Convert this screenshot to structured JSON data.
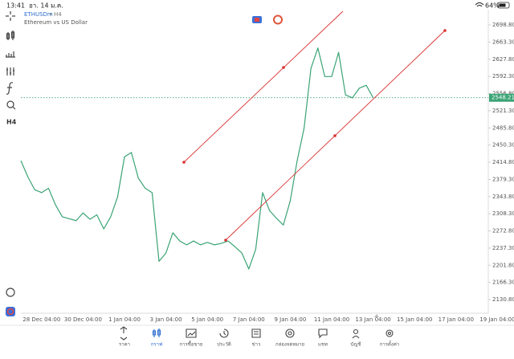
{
  "status_bar": {
    "time": "13:41",
    "date": "อา. 14 ม.ค.",
    "battery": "64%"
  },
  "header": {
    "symbol": "ETHUSDm",
    "timeframe": "H4",
    "description": "Ethereum vs US Dollar"
  },
  "toolbar": {
    "timeframe_button": "H4"
  },
  "chart_data": {
    "type": "line",
    "categories": [
      null,
      null,
      null,
      "28 Dec 04:00",
      null,
      null,
      null,
      null,
      null,
      "30 Dec 04:00",
      null,
      null,
      null,
      null,
      null,
      "1 Jan 04:00",
      null,
      null,
      null,
      null,
      null,
      "3 Jan 04:00",
      null,
      null,
      null,
      null,
      null,
      "5 Jan 04:00",
      null,
      null,
      null,
      null,
      null,
      "7 Jan 04:00",
      null,
      null,
      null,
      null,
      null,
      "9 Jan 04:00",
      null,
      null,
      null,
      null,
      null,
      "11 Jan 04:00",
      null,
      null,
      null,
      null,
      null,
      "13 Jan 04:00",
      null,
      null,
      null,
      null,
      null,
      "15 Jan 04:00",
      null,
      null,
      null,
      null,
      null,
      "17 Jan 04:00",
      null,
      null,
      null,
      null,
      null,
      "19 Jan 04:00",
      null,
      null
    ],
    "series": [
      {
        "name": "ETHUSDm",
        "color": "#3aa374",
        "values": [
          2418,
          2385,
          2358,
          2352,
          2361,
          2327,
          2302,
          2298,
          2294,
          2310,
          2297,
          2306,
          2277,
          2302,
          2343,
          2426,
          2435,
          2382,
          2361,
          2352,
          2210,
          2227,
          2269,
          2252,
          2244,
          2252,
          2244,
          2249,
          2244,
          2247,
          2252,
          2240,
          2227,
          2194,
          2235,
          2352,
          2315,
          2299,
          2285,
          2335,
          2418,
          2485,
          2609,
          2651,
          2592,
          2592,
          2642,
          2554,
          2548,
          2568,
          2574,
          2548.21,
          null,
          null,
          null,
          null,
          null,
          null,
          null,
          null,
          null,
          null,
          null,
          null,
          null,
          null,
          null,
          null,
          null,
          null,
          null,
          null
        ]
      }
    ],
    "current_price": 2548.21,
    "ylim": [
      2102.6,
      2730.4
    ],
    "yticks": [
      {
        "value": 2698.8,
        "label": "2698.80"
      },
      {
        "value": 2663.3,
        "label": "2663.30"
      },
      {
        "value": 2627.8,
        "label": "2627.80"
      },
      {
        "value": 2592.3,
        "label": "2592.30"
      },
      {
        "value": 2556.8,
        "label": "2556.80"
      },
      {
        "value": 2521.3,
        "label": "2521.30"
      },
      {
        "value": 2485.8,
        "label": "2485.80"
      },
      {
        "value": 2450.3,
        "label": "2450.30"
      },
      {
        "value": 2414.8,
        "label": "2414.80"
      },
      {
        "value": 2379.3,
        "label": "2379.30"
      },
      {
        "value": 2343.8,
        "label": "2343.80"
      },
      {
        "value": 2308.3,
        "label": "2308.30"
      },
      {
        "value": 2272.8,
        "label": "2272.80"
      },
      {
        "value": 2237.3,
        "label": "2237.30"
      },
      {
        "value": 2201.8,
        "label": "2201.80"
      },
      {
        "value": 2166.3,
        "label": "2166.30"
      },
      {
        "value": 2130.8,
        "label": "2130.80"
      }
    ]
  },
  "bottom_nav": [
    "ราคา",
    "กราฟ",
    "การซื้อขาย",
    "ประวัติ",
    "ข่าว",
    "กล่องจดหมาย",
    "แชท",
    "บัญชี",
    "การตั้งค่า"
  ],
  "active_tab": 1
}
